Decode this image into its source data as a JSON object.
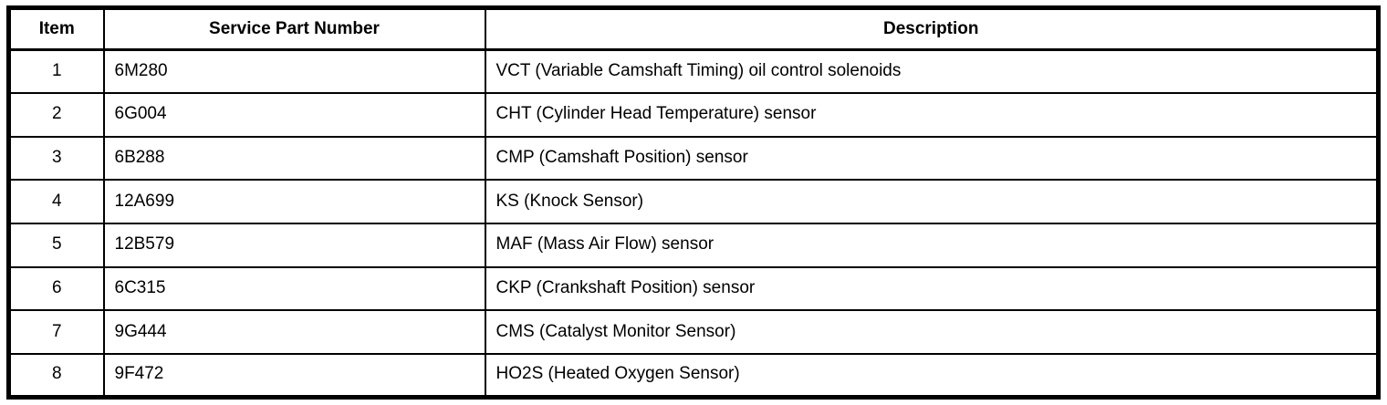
{
  "table": {
    "columns": [
      {
        "label": "Item"
      },
      {
        "label": "Service Part Number"
      },
      {
        "label": "Description"
      }
    ],
    "rows": [
      {
        "item": "1",
        "part": "6M280",
        "desc": "VCT (Variable Camshaft Timing) oil control solenoids"
      },
      {
        "item": "2",
        "part": "6G004",
        "desc": "CHT (Cylinder Head Temperature) sensor"
      },
      {
        "item": "3",
        "part": "6B288",
        "desc": "CMP (Camshaft Position) sensor"
      },
      {
        "item": "4",
        "part": "12A699",
        "desc": "KS (Knock Sensor)"
      },
      {
        "item": "5",
        "part": "12B579",
        "desc": "MAF (Mass Air Flow) sensor"
      },
      {
        "item": "6",
        "part": "6C315",
        "desc": "CKP (Crankshaft Position) sensor"
      },
      {
        "item": "7",
        "part": "9G444",
        "desc": "CMS (Catalyst Monitor Sensor)"
      },
      {
        "item": "8",
        "part": "9F472",
        "desc": "HO2S (Heated Oxygen Sensor)"
      }
    ]
  }
}
